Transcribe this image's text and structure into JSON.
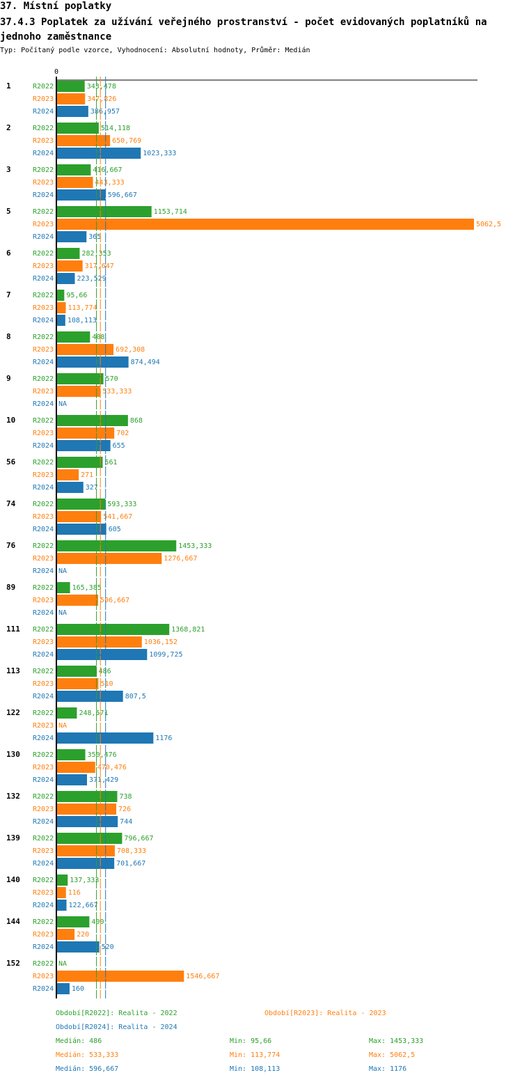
{
  "header": {
    "title": "37. Místní poplatky",
    "subtitle": "37.4.3 Poplatek za užívání veřejného prostranství - počet evidovaných poplatníků na jednoho zaměstnance",
    "meta": "Typ: Počítaný podle vzorce, Vyhodnocení: Absolutní hodnoty, Průměr: Medián"
  },
  "colors": {
    "R2022": "#2ca02c",
    "R2023": "#ff7f0e",
    "R2024": "#1f77b4"
  },
  "chart_data": {
    "type": "bar",
    "orientation": "horizontal",
    "x_tick_label": "0",
    "xlim": [
      0,
      5062.5
    ],
    "categories": [
      "1",
      "2",
      "3",
      "5",
      "6",
      "7",
      "8",
      "9",
      "10",
      "56",
      "74",
      "76",
      "89",
      "111",
      "113",
      "122",
      "130",
      "132",
      "139",
      "140",
      "144",
      "152"
    ],
    "series": [
      {
        "name": "R2022",
        "values": [
          343.478,
          514.118,
          416.667,
          1153.714,
          282.353,
          95.66,
          408,
          570,
          868,
          561,
          593.333,
          1453.333,
          165.385,
          1368.821,
          486,
          248.571,
          350.476,
          738,
          796.667,
          137.333,
          400,
          null
        ],
        "labels": [
          "343,478",
          "514,118",
          "416,667",
          "1153,714",
          "282,353",
          "95,66",
          "408",
          "570",
          "868",
          "561",
          "593,333",
          "1453,333",
          "165,385",
          "1368,821",
          "486",
          "248,571",
          "350,476",
          "738",
          "796,667",
          "137,333",
          "400",
          "NA"
        ]
      },
      {
        "name": "R2023",
        "values": [
          347.826,
          650.769,
          443.333,
          5062.5,
          317.647,
          113.774,
          692.308,
          533.333,
          702,
          271,
          541.667,
          1276.667,
          506.667,
          1036.152,
          510,
          null,
          470.476,
          726,
          708.333,
          116,
          220,
          1546.667
        ],
        "labels": [
          "347,826",
          "650,769",
          "443,333",
          "5062,5",
          "317,647",
          "113,774",
          "692,308",
          "533,333",
          "702",
          "271",
          "541,667",
          "1276,667",
          "506,667",
          "1036,152",
          "510",
          "NA",
          "470,476",
          "726",
          "708,333",
          "116",
          "220",
          "1546,667"
        ]
      },
      {
        "name": "R2024",
        "values": [
          386.957,
          1023.333,
          596.667,
          365,
          223.529,
          108.113,
          874.494,
          null,
          655,
          327,
          605,
          null,
          null,
          1099.725,
          807.5,
          1176,
          371.429,
          744,
          701.667,
          122.667,
          520,
          160
        ],
        "labels": [
          "386,957",
          "1023,333",
          "596,667",
          "365",
          "223,529",
          "108,113",
          "874,494",
          "NA",
          "655",
          "327",
          "605",
          "NA",
          "NA",
          "1099,725",
          "807,5",
          "1176",
          "371,429",
          "744",
          "701,667",
          "122,667",
          "520",
          "160"
        ]
      }
    ],
    "medians": {
      "R2022": 486,
      "R2023": 533.333,
      "R2024": 596.667
    }
  },
  "legend": {
    "periods": [
      {
        "key": "R2022",
        "text": "Období[R2022]: Realita - 2022"
      },
      {
        "key": "R2023",
        "text": "Období[R2023]: Realita - 2023"
      },
      {
        "key": "R2024",
        "text": "Období[R2024]: Realita - 2024"
      }
    ],
    "stats": [
      {
        "key": "R2022",
        "median": "Medián: 486",
        "min": "Min: 95,66",
        "max": "Max: 1453,333"
      },
      {
        "key": "R2023",
        "median": "Medián: 533,333",
        "min": "Min: 113,774",
        "max": "Max: 5062,5"
      },
      {
        "key": "R2024",
        "median": "Medián: 596,667",
        "min": "Min: 108,113",
        "max": "Max: 1176"
      }
    ]
  }
}
